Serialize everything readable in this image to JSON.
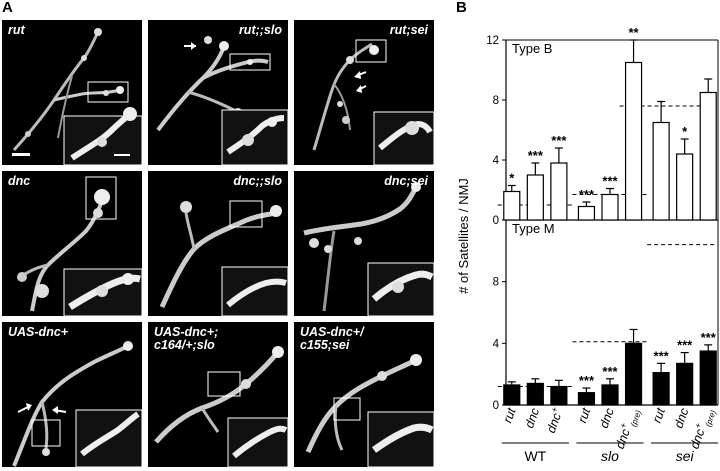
{
  "panels": {
    "a": "A",
    "b": "B"
  },
  "micrographs": [
    {
      "label": "rut",
      "align": "left"
    },
    {
      "label": "rut;;slo",
      "align": "right"
    },
    {
      "label": "rut;sei",
      "align": "right"
    },
    {
      "label": "dnc",
      "align": "left"
    },
    {
      "label": "dnc;;slo",
      "align": "right"
    },
    {
      "label": "dnc;sei",
      "align": "right"
    },
    {
      "label": "UAS-dnc+",
      "align": "left"
    },
    {
      "label": "UAS-dnc+;\nc164/+;slo",
      "align": "left"
    },
    {
      "label": "UAS-dnc+/\nc155;sei",
      "align": "left"
    }
  ],
  "chart_data": {
    "type": "bar",
    "ylabel": "# of Satellites / NMJ",
    "categories": [
      "rut",
      "dnc",
      "dnc+",
      "rut",
      "dnc",
      "dnc+(pre)",
      "rut",
      "dnc",
      "dnc+(pre)"
    ],
    "category_display": [
      {
        "base": "rut",
        "sup": "",
        "sub": ""
      },
      {
        "base": "dnc",
        "sup": "",
        "sub": ""
      },
      {
        "base": "dnc",
        "sup": "+",
        "sub": ""
      },
      {
        "base": "rut",
        "sup": "",
        "sub": ""
      },
      {
        "base": "dnc",
        "sup": "",
        "sub": ""
      },
      {
        "base": "dnc",
        "sup": "+",
        "sub": "(pre)"
      },
      {
        "base": "rut",
        "sup": "",
        "sub": ""
      },
      {
        "base": "dnc",
        "sup": "",
        "sub": ""
      },
      {
        "base": "dnc",
        "sup": "+",
        "sub": "(pre)"
      }
    ],
    "groups": [
      {
        "name": "WT",
        "italic": false,
        "start": 0,
        "end": 2
      },
      {
        "name": "slo",
        "italic": true,
        "start": 3,
        "end": 5
      },
      {
        "name": "sei",
        "italic": true,
        "start": 6,
        "end": 8
      }
    ],
    "panels": [
      {
        "title": "Type B",
        "fill": "#ffffff",
        "values": [
          1.9,
          3.0,
          3.8,
          0.9,
          1.7,
          10.5,
          6.5,
          4.4,
          8.5
        ],
        "errors": [
          0.4,
          0.8,
          1.0,
          0.3,
          0.4,
          1.5,
          1.4,
          1.0,
          0.9
        ],
        "significance": [
          "*",
          "***",
          "***",
          "***",
          "***",
          "**",
          "",
          "*",
          ""
        ],
        "reference_lines": [
          {
            "value": 1.0,
            "from": 0,
            "to": 2
          },
          {
            "value": 1.7,
            "from": 3,
            "to": 5
          },
          {
            "value": 7.6,
            "from": 5,
            "to": 8
          }
        ],
        "ylim": [
          0,
          12
        ],
        "yticks": [
          0,
          4,
          8,
          12
        ]
      },
      {
        "title": "Type M",
        "fill": "#000000",
        "values": [
          1.3,
          1.4,
          1.2,
          0.8,
          1.3,
          4.0,
          2.1,
          2.7,
          3.5
        ],
        "errors": [
          0.2,
          0.3,
          0.4,
          0.3,
          0.4,
          0.9,
          0.6,
          0.7,
          0.4
        ],
        "significance": [
          "",
          "",
          "",
          "***",
          "***",
          "",
          "***",
          "***",
          "***"
        ],
        "reference_lines": [
          {
            "value": 1.2,
            "from": 0,
            "to": 2
          },
          {
            "value": 4.1,
            "from": 3,
            "to": 5
          },
          {
            "value": 10.4,
            "from": 6,
            "to": 8
          }
        ],
        "ylim": [
          0,
          12
        ],
        "yticks": [
          0,
          4,
          8
        ]
      }
    ]
  }
}
